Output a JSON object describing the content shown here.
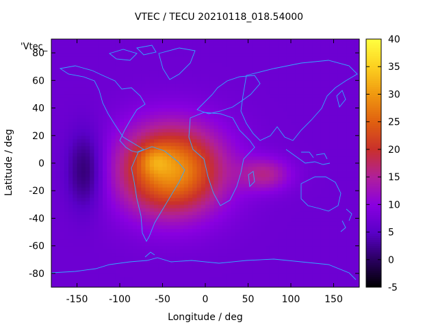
{
  "chart_data": {
    "type": "heatmap",
    "title": "VTEC / TECU 20210118_018.54000",
    "xlabel": "Longitude / deg",
    "ylabel": "Latitude / deg",
    "legend_key": "'Vtec_",
    "xlim": [
      -180,
      180
    ],
    "ylim": [
      -90,
      90
    ],
    "x_ticks": [
      -150,
      -100,
      -50,
      0,
      50,
      100,
      150
    ],
    "y_ticks": [
      -80,
      -60,
      -40,
      -20,
      0,
      20,
      40,
      60,
      80
    ],
    "colorbar": {
      "range": [
        -5,
        40
      ],
      "ticks": [
        -5,
        0,
        5,
        10,
        15,
        20,
        25,
        30,
        35,
        40
      ],
      "palette": [
        "#000000",
        "#2a0060",
        "#5a00c8",
        "#8a00e0",
        "#b0209a",
        "#c9302c",
        "#e06010",
        "#f09810",
        "#fcd020",
        "#ffff40"
      ]
    },
    "field_features": {
      "background_vtec": 7,
      "enhancement_peak_vtec": 30,
      "enhancement_center_lon_lat": [
        -40,
        -5
      ],
      "pacific_minimum_vtec": 0,
      "pacific_minimum_lon_lat": [
        -140,
        -5
      ]
    },
    "colors": {
      "coastline": "#33aaff"
    }
  }
}
